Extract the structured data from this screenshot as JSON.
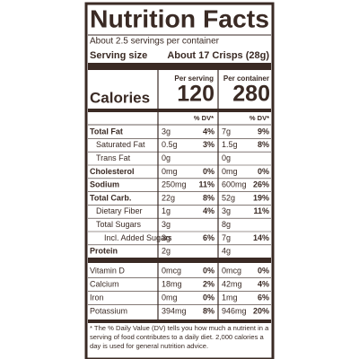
{
  "header": {
    "title": "Nutrition Facts",
    "servings": "About 2.5 servings per container",
    "serving_size_label": "Serving size",
    "serving_size_value": "About 17 Crisps (28g)"
  },
  "columns": {
    "per_serving": "Per serving",
    "per_container": "Per container"
  },
  "calories": {
    "label": "Calories",
    "serving": "120",
    "container": "280"
  },
  "dv_labels": [
    "% DV*",
    "% DV*"
  ],
  "rows": [
    {
      "name": "Total Fat",
      "serving": "3g",
      "serving_dv": "4%",
      "container": "7g",
      "container_dv": "9%"
    },
    {
      "name": "Saturated Fat",
      "serving": "0.5g",
      "serving_dv": "3%",
      "container": "1.5g",
      "container_dv": "8%"
    },
    {
      "name": "Trans Fat",
      "serving": "0g",
      "container": "0g"
    },
    {
      "name": "Cholesterol",
      "serving": "0mg",
      "serving_dv": "0%",
      "container": "0mg",
      "container_dv": "0%"
    },
    {
      "name": "Sodium",
      "serving": "250mg",
      "serving_dv": "11%",
      "container": "600mg",
      "container_dv": "26%"
    },
    {
      "name": "Total Carb.",
      "serving": "22g",
      "serving_dv": "8%",
      "container": "52g",
      "container_dv": "19%"
    },
    {
      "name": "Dietary Fiber",
      "serving": "1g",
      "serving_dv": "4%",
      "container": "3g",
      "container_dv": "11%"
    },
    {
      "name": "Total Sugars",
      "serving": "3g",
      "container": "8g"
    },
    {
      "name": "Incl. Added Sugars",
      "serving": "3g",
      "serving_dv": "6%",
      "container": "7g",
      "container_dv": "14%"
    },
    {
      "name": "Protein",
      "serving": "2g",
      "container": "4g"
    },
    {
      "name": "Vitamin D",
      "serving": "0mcg",
      "serving_dv": "0%",
      "container": "0mcg",
      "container_dv": "0%"
    },
    {
      "name": "Calcium",
      "serving": "18mg",
      "serving_dv": "2%",
      "container": "42mg",
      "container_dv": "4%"
    },
    {
      "name": "Iron",
      "serving": "0mg",
      "serving_dv": "0%",
      "container": "1mg",
      "container_dv": "6%"
    },
    {
      "name": "Potassium",
      "serving": "394mg",
      "serving_dv": "8%",
      "container": "946mg",
      "container_dv": "20%"
    }
  ],
  "footnote": "* The % Daily Value (DV) tells you how much a nutrient in a serving of food contributes to a daily diet. 2,000 calories a day is used for general nutrition advice."
}
